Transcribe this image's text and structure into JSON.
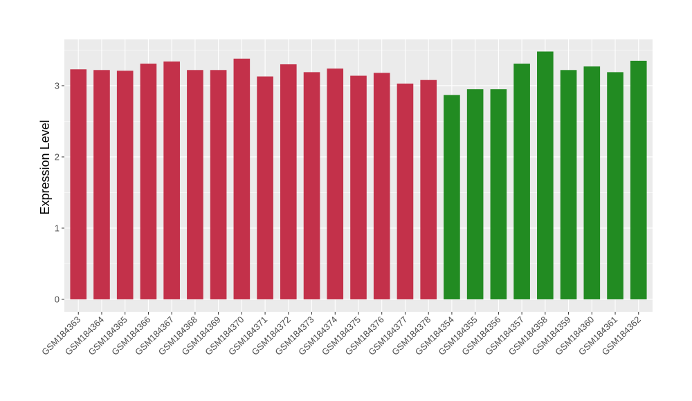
{
  "chart_data": {
    "type": "bar",
    "title": "",
    "xlabel": "",
    "ylabel": "Expression Level",
    "ylim": [
      -0.175,
      3.65
    ],
    "yticks": [
      "0",
      "1",
      "2",
      "3"
    ],
    "grid": true,
    "colors": {
      "group1": "#C3314A",
      "group2": "#228B22",
      "panel": "#EBEBEB",
      "grid": "#FFFFFF"
    },
    "categories": [
      "GSM184363",
      "GSM184364",
      "GSM184365",
      "GSM184366",
      "GSM184367",
      "GSM184368",
      "GSM184369",
      "GSM184370",
      "GSM184371",
      "GSM184372",
      "GSM184373",
      "GSM184374",
      "GSM184375",
      "GSM184376",
      "GSM184377",
      "GSM184378",
      "GSM184354",
      "GSM184355",
      "GSM184356",
      "GSM184357",
      "GSM184358",
      "GSM184359",
      "GSM184360",
      "GSM184361",
      "GSM184362"
    ],
    "values": [
      3.23,
      3.22,
      3.21,
      3.31,
      3.34,
      3.22,
      3.22,
      3.38,
      3.13,
      3.3,
      3.19,
      3.24,
      3.14,
      3.18,
      3.03,
      3.08,
      2.87,
      2.95,
      2.95,
      3.31,
      3.48,
      3.22,
      3.27,
      3.19,
      3.35
    ],
    "groups": [
      1,
      1,
      1,
      1,
      1,
      1,
      1,
      1,
      1,
      1,
      1,
      1,
      1,
      1,
      1,
      1,
      2,
      2,
      2,
      2,
      2,
      2,
      2,
      2,
      2
    ]
  }
}
